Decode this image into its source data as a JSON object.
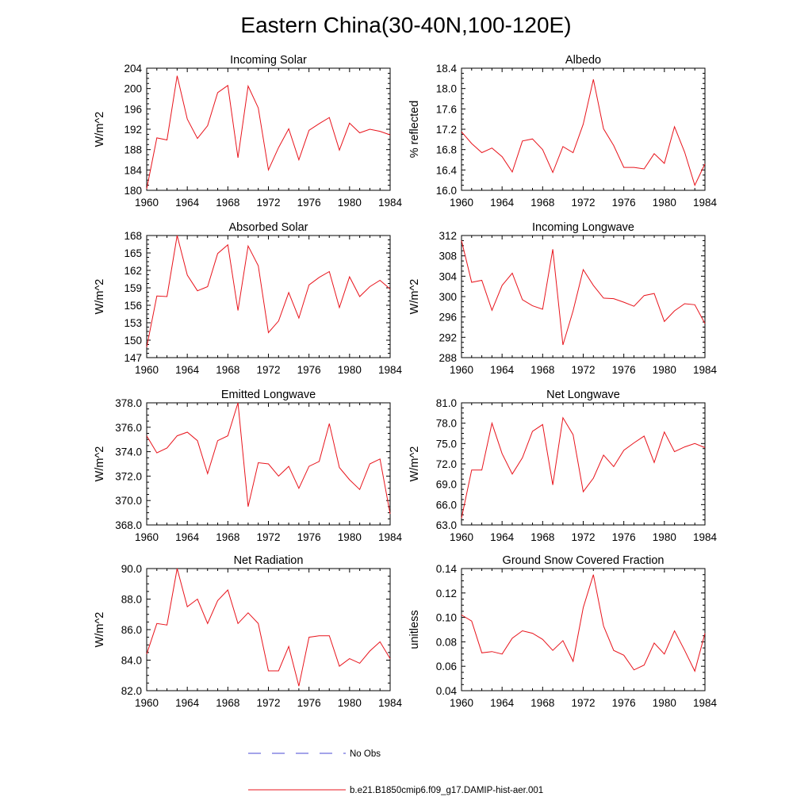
{
  "figure": {
    "title": "Eastern China(30-40N,100-120E)",
    "line_color": "#e8141c",
    "obs_color": "#4a4ad6"
  },
  "legend": {
    "location": "bottom-center",
    "items": [
      {
        "label": "No Obs",
        "style": "dashed"
      },
      {
        "label": "b.e21.B1850cmip6.f09_g17.DAMIP-hist-aer.001",
        "style": "solid"
      }
    ]
  },
  "chart_data": [
    {
      "type": "line",
      "title": "Incoming Solar",
      "ylabel": "W/m^2",
      "x": [
        1960,
        1961,
        1962,
        1963,
        1964,
        1965,
        1966,
        1967,
        1968,
        1969,
        1970,
        1971,
        1972,
        1973,
        1974,
        1975,
        1976,
        1977,
        1978,
        1979,
        1980,
        1981,
        1982,
        1983,
        1984
      ],
      "xticks": [
        "1960",
        "1964",
        "1968",
        "1972",
        "1976",
        "1980",
        "1984"
      ],
      "xlim": [
        1960,
        1984
      ],
      "ylim": [
        180,
        204
      ],
      "yticks": [
        "180",
        "184",
        "188",
        "192",
        "196",
        "200",
        "204"
      ],
      "series": [
        {
          "values": [
            180.3,
            190.3,
            189.9,
            202.5,
            194.0,
            190.2,
            192.7,
            199.2,
            200.6,
            186.4,
            200.5,
            196.2,
            184.0,
            188.4,
            192.1,
            186.0,
            191.8,
            193.1,
            194.3,
            187.9,
            193.2,
            191.3,
            192.0,
            191.6,
            190.9
          ]
        }
      ]
    },
    {
      "type": "line",
      "title": "Albedo",
      "ylabel": "% reflected",
      "x": [
        1960,
        1961,
        1962,
        1963,
        1964,
        1965,
        1966,
        1967,
        1968,
        1969,
        1970,
        1971,
        1972,
        1973,
        1974,
        1975,
        1976,
        1977,
        1978,
        1979,
        1980,
        1981,
        1982,
        1983,
        1984
      ],
      "xticks": [
        "1960",
        "1964",
        "1968",
        "1972",
        "1976",
        "1980",
        "1984"
      ],
      "xlim": [
        1960,
        1984
      ],
      "ylim": [
        16.0,
        18.4
      ],
      "yticks": [
        "16.0",
        "16.4",
        "16.8",
        "17.2",
        "17.6",
        "18.0",
        "18.4"
      ],
      "series": [
        {
          "values": [
            17.15,
            16.92,
            16.74,
            16.83,
            16.66,
            16.36,
            16.97,
            17.01,
            16.8,
            16.35,
            16.86,
            16.74,
            17.3,
            18.18,
            17.21,
            16.88,
            16.45,
            16.45,
            16.42,
            16.72,
            16.53,
            17.25,
            16.75,
            16.1,
            16.52
          ]
        }
      ]
    },
    {
      "type": "line",
      "title": "Absorbed Solar",
      "ylabel": "W/m^2",
      "x": [
        1960,
        1961,
        1962,
        1963,
        1964,
        1965,
        1966,
        1967,
        1968,
        1969,
        1970,
        1971,
        1972,
        1973,
        1974,
        1975,
        1976,
        1977,
        1978,
        1979,
        1980,
        1981,
        1982,
        1983,
        1984
      ],
      "xticks": [
        "1960",
        "1964",
        "1968",
        "1972",
        "1976",
        "1980",
        "1984"
      ],
      "xlim": [
        1960,
        1984
      ],
      "ylim": [
        147,
        168
      ],
      "yticks": [
        "147",
        "150",
        "153",
        "156",
        "159",
        "162",
        "165",
        "168"
      ],
      "series": [
        {
          "values": [
            148.8,
            157.6,
            157.5,
            168.0,
            161.2,
            158.5,
            159.2,
            164.9,
            166.4,
            155.1,
            166.2,
            162.8,
            151.3,
            153.3,
            158.2,
            153.8,
            159.5,
            160.8,
            161.8,
            155.6,
            160.9,
            157.5,
            159.2,
            160.3,
            158.8
          ]
        }
      ]
    },
    {
      "type": "line",
      "title": "Incoming Longwave",
      "ylabel": "W/m^2",
      "x": [
        1960,
        1961,
        1962,
        1963,
        1964,
        1965,
        1966,
        1967,
        1968,
        1969,
        1970,
        1971,
        1972,
        1973,
        1974,
        1975,
        1976,
        1977,
        1978,
        1979,
        1980,
        1981,
        1982,
        1983,
        1984
      ],
      "xticks": [
        "1960",
        "1964",
        "1968",
        "1972",
        "1976",
        "1980",
        "1984"
      ],
      "xlim": [
        1960,
        1984
      ],
      "ylim": [
        288,
        312
      ],
      "yticks": [
        "288",
        "292",
        "296",
        "300",
        "304",
        "308",
        "312"
      ],
      "series": [
        {
          "values": [
            311.0,
            302.8,
            303.2,
            297.3,
            302.2,
            304.6,
            299.4,
            298.2,
            297.5,
            309.3,
            290.5,
            297.2,
            305.3,
            302.2,
            299.7,
            299.6,
            298.9,
            298.1,
            300.2,
            300.6,
            295.1,
            297.2,
            298.6,
            298.4,
            294.7
          ]
        }
      ]
    },
    {
      "type": "line",
      "title": "Emitted Longwave",
      "ylabel": "W/m^2",
      "x": [
        1960,
        1961,
        1962,
        1963,
        1964,
        1965,
        1966,
        1967,
        1968,
        1969,
        1970,
        1971,
        1972,
        1973,
        1974,
        1975,
        1976,
        1977,
        1978,
        1979,
        1980,
        1981,
        1982,
        1983,
        1984
      ],
      "xticks": [
        "1960",
        "1964",
        "1968",
        "1972",
        "1976",
        "1980",
        "1984"
      ],
      "xlim": [
        1960,
        1984
      ],
      "ylim": [
        368.0,
        378.0
      ],
      "yticks": [
        "368.0",
        "370.0",
        "372.0",
        "374.0",
        "376.0",
        "378.0"
      ],
      "series": [
        {
          "values": [
            375.3,
            373.9,
            374.3,
            375.3,
            375.6,
            374.9,
            372.2,
            374.9,
            375.3,
            378.0,
            369.5,
            373.1,
            373.0,
            372.0,
            372.8,
            371.0,
            372.8,
            373.2,
            376.3,
            372.7,
            371.7,
            370.9,
            373.0,
            373.4,
            368.9
          ]
        }
      ]
    },
    {
      "type": "line",
      "title": "Net Longwave",
      "ylabel": "W/m^2",
      "x": [
        1960,
        1961,
        1962,
        1963,
        1964,
        1965,
        1966,
        1967,
        1968,
        1969,
        1970,
        1971,
        1972,
        1973,
        1974,
        1975,
        1976,
        1977,
        1978,
        1979,
        1980,
        1981,
        1982,
        1983,
        1984
      ],
      "xticks": [
        "1960",
        "1964",
        "1968",
        "1972",
        "1976",
        "1980",
        "1984"
      ],
      "xlim": [
        1960,
        1984
      ],
      "ylim": [
        63.0,
        81.0
      ],
      "yticks": [
        "63.0",
        "66.0",
        "69.0",
        "72.0",
        "75.0",
        "78.0",
        "81.0"
      ],
      "series": [
        {
          "values": [
            64.0,
            71.1,
            71.1,
            78.0,
            73.5,
            70.5,
            72.9,
            76.8,
            77.8,
            68.9,
            78.8,
            76.3,
            67.9,
            69.9,
            73.3,
            71.6,
            74.0,
            75.1,
            76.1,
            72.2,
            76.7,
            73.8,
            74.5,
            75.0,
            74.4
          ]
        }
      ]
    },
    {
      "type": "line",
      "title": "Net Radiation",
      "ylabel": "W/m^2",
      "x": [
        1960,
        1961,
        1962,
        1963,
        1964,
        1965,
        1966,
        1967,
        1968,
        1969,
        1970,
        1971,
        1972,
        1973,
        1974,
        1975,
        1976,
        1977,
        1978,
        1979,
        1980,
        1981,
        1982,
        1983,
        1984
      ],
      "xticks": [
        "1960",
        "1964",
        "1968",
        "1972",
        "1976",
        "1980",
        "1984"
      ],
      "xlim": [
        1960,
        1984
      ],
      "ylim": [
        82.0,
        90.0
      ],
      "yticks": [
        "82.0",
        "84.0",
        "86.0",
        "88.0",
        "90.0"
      ],
      "series": [
        {
          "values": [
            84.4,
            86.4,
            86.3,
            90.0,
            87.5,
            88.0,
            86.4,
            87.9,
            88.6,
            86.4,
            87.1,
            86.4,
            83.3,
            83.3,
            84.9,
            82.3,
            85.5,
            85.6,
            85.6,
            83.6,
            84.1,
            83.8,
            84.6,
            85.2,
            84.1
          ]
        }
      ]
    },
    {
      "type": "line",
      "title": "Ground Snow Covered Fraction",
      "ylabel": "unitless",
      "x": [
        1960,
        1961,
        1962,
        1963,
        1964,
        1965,
        1966,
        1967,
        1968,
        1969,
        1970,
        1971,
        1972,
        1973,
        1974,
        1975,
        1976,
        1977,
        1978,
        1979,
        1980,
        1981,
        1982,
        1983,
        1984
      ],
      "xticks": [
        "1960",
        "1964",
        "1968",
        "1972",
        "1976",
        "1980",
        "1984"
      ],
      "xlim": [
        1960,
        1984
      ],
      "ylim": [
        0.04,
        0.14
      ],
      "yticks": [
        "0.04",
        "0.06",
        "0.08",
        "0.10",
        "0.12",
        "0.14"
      ],
      "series": [
        {
          "values": [
            0.102,
            0.097,
            0.071,
            0.072,
            0.07,
            0.083,
            0.089,
            0.087,
            0.082,
            0.073,
            0.081,
            0.064,
            0.108,
            0.135,
            0.093,
            0.073,
            0.069,
            0.057,
            0.061,
            0.079,
            0.07,
            0.089,
            0.073,
            0.056,
            0.087
          ]
        }
      ]
    }
  ]
}
